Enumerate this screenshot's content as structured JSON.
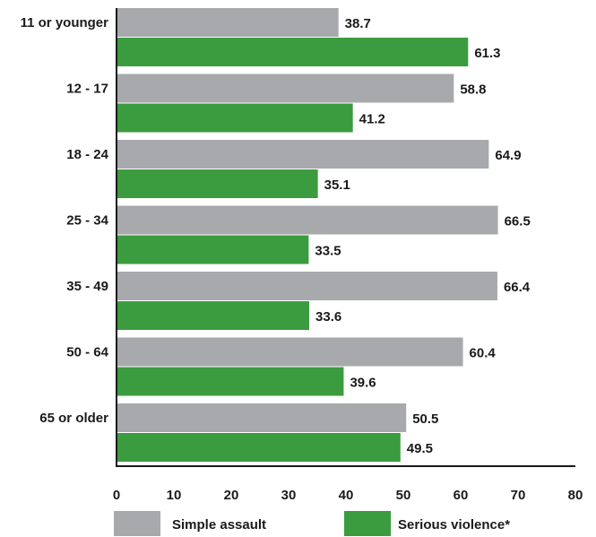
{
  "chart_data": {
    "type": "bar",
    "orientation": "horizontal",
    "categories": [
      "11 or younger",
      "12 - 17",
      "18 - 24",
      "25 - 34",
      "35 - 49",
      "50 - 64",
      "65 or older"
    ],
    "series": [
      {
        "name": "Simple assault",
        "color": "#a7a9ac",
        "values": [
          38.7,
          58.8,
          64.9,
          66.5,
          66.4,
          60.4,
          50.5
        ]
      },
      {
        "name": "Serious violence*",
        "color": "#3b9c3f",
        "values": [
          61.3,
          41.2,
          35.1,
          33.5,
          33.6,
          39.6,
          49.5
        ]
      }
    ],
    "xlim": [
      0,
      80
    ],
    "xticks": [
      0,
      10,
      20,
      30,
      40,
      50,
      60,
      70,
      80
    ],
    "grid": false,
    "legend": "bottom"
  }
}
